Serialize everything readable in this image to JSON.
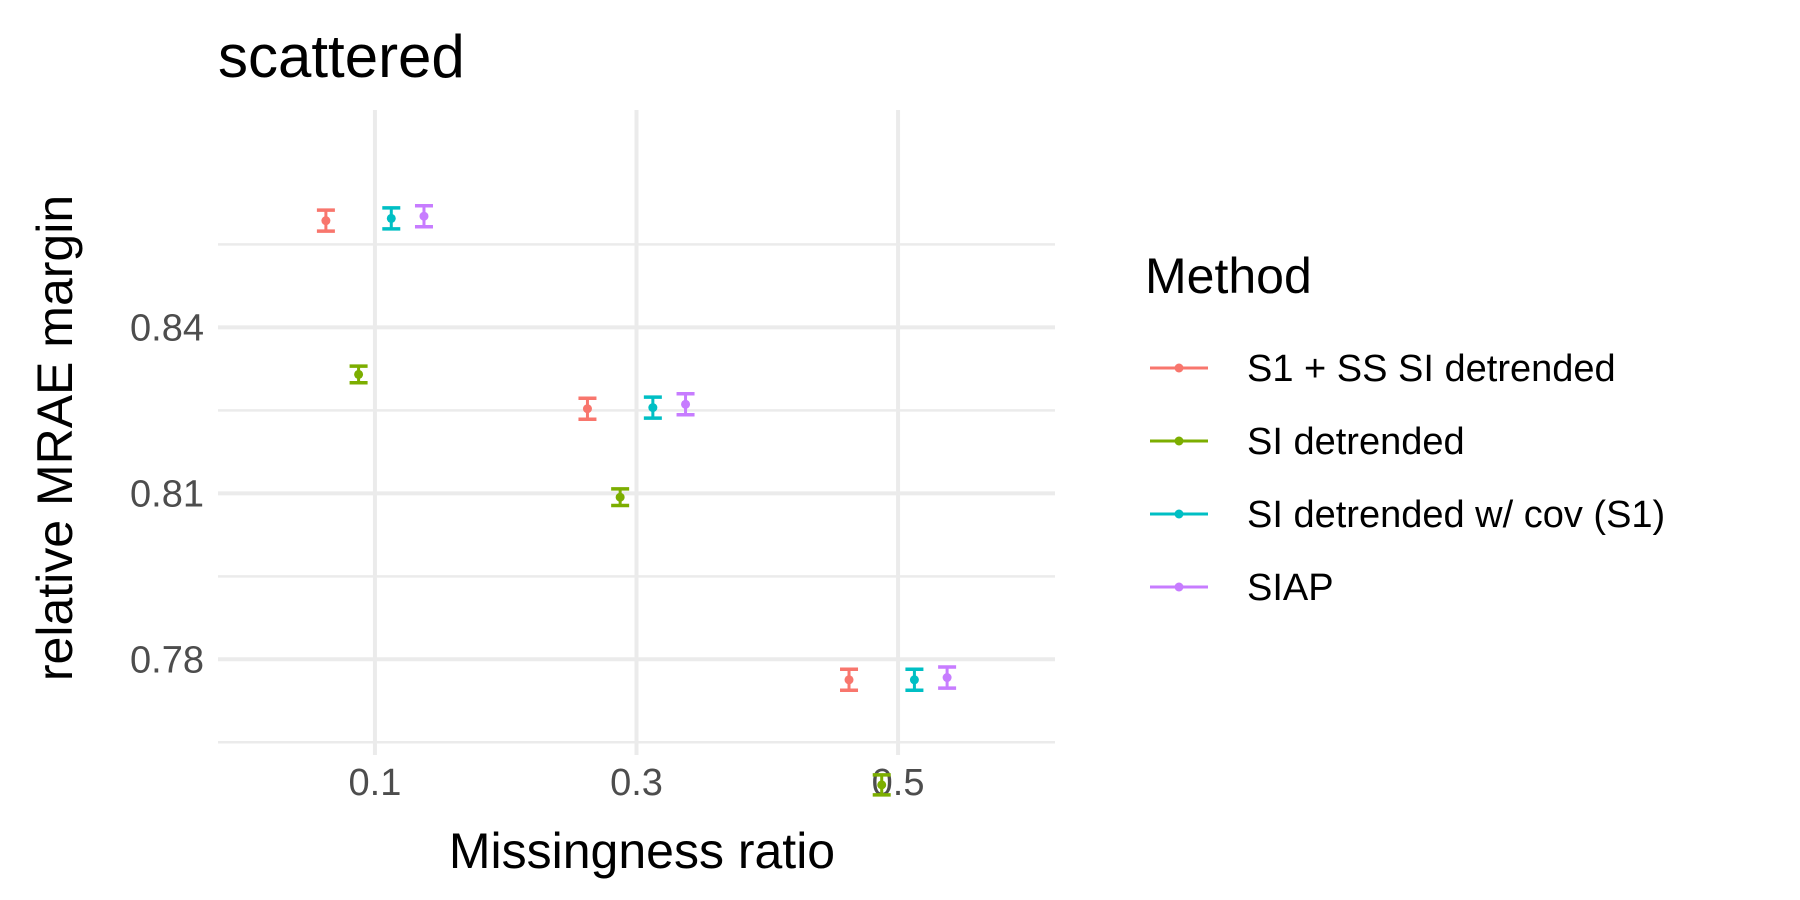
{
  "chart_data": {
    "type": "scatter",
    "title": "scattered",
    "xlabel": "Missingness ratio",
    "ylabel": "relative MRAE margin",
    "x_ticks": [
      "0.1",
      "0.3",
      "0.5"
    ],
    "y_ticks": [
      "0.84",
      "0.81",
      "0.78"
    ],
    "xlim": [
      -0.02,
      0.62
    ],
    "ylim": [
      0.7627,
      0.8793
    ],
    "grid": true,
    "legend": {
      "title": "Method",
      "position": "right"
    },
    "categories": [
      0.1,
      0.3,
      0.5
    ],
    "series": [
      {
        "name": "S1 + SS SI detrended",
        "color": "#F8766D",
        "dodge": -0.0375,
        "points": [
          {
            "x": 0.1,
            "y": 0.8593,
            "ymin": 0.8574,
            "ymax": 0.8612
          },
          {
            "x": 0.3,
            "y": 0.8253,
            "ymin": 0.8234,
            "ymax": 0.8272
          },
          {
            "x": 0.5,
            "y": 0.7763,
            "ymin": 0.7744,
            "ymax": 0.7782
          }
        ]
      },
      {
        "name": "SI detrended",
        "color": "#7CAE00",
        "dodge": -0.0125,
        "points": [
          {
            "x": 0.1,
            "y": 0.8315,
            "ymin": 0.83,
            "ymax": 0.833
          },
          {
            "x": 0.3,
            "y": 0.8093,
            "ymin": 0.8078,
            "ymax": 0.8108
          },
          {
            "x": 0.5,
            "y": 0.7573,
            "ymin": 0.7555,
            "ymax": 0.7591
          }
        ]
      },
      {
        "name": "SI detrended w/ cov (S1)",
        "color": "#00BFC4",
        "dodge": 0.0125,
        "points": [
          {
            "x": 0.1,
            "y": 0.8597,
            "ymin": 0.8578,
            "ymax": 0.8616
          },
          {
            "x": 0.3,
            "y": 0.8255,
            "ymin": 0.8236,
            "ymax": 0.8274
          },
          {
            "x": 0.5,
            "y": 0.7763,
            "ymin": 0.7744,
            "ymax": 0.7782
          }
        ]
      },
      {
        "name": "SIAP",
        "color": "#C77CFF",
        "dodge": 0.0375,
        "points": [
          {
            "x": 0.1,
            "y": 0.8601,
            "ymin": 0.8582,
            "ymax": 0.862
          },
          {
            "x": 0.3,
            "y": 0.8261,
            "ymin": 0.8242,
            "ymax": 0.828
          },
          {
            "x": 0.5,
            "y": 0.7767,
            "ymin": 0.7748,
            "ymax": 0.7786
          }
        ]
      }
    ]
  }
}
